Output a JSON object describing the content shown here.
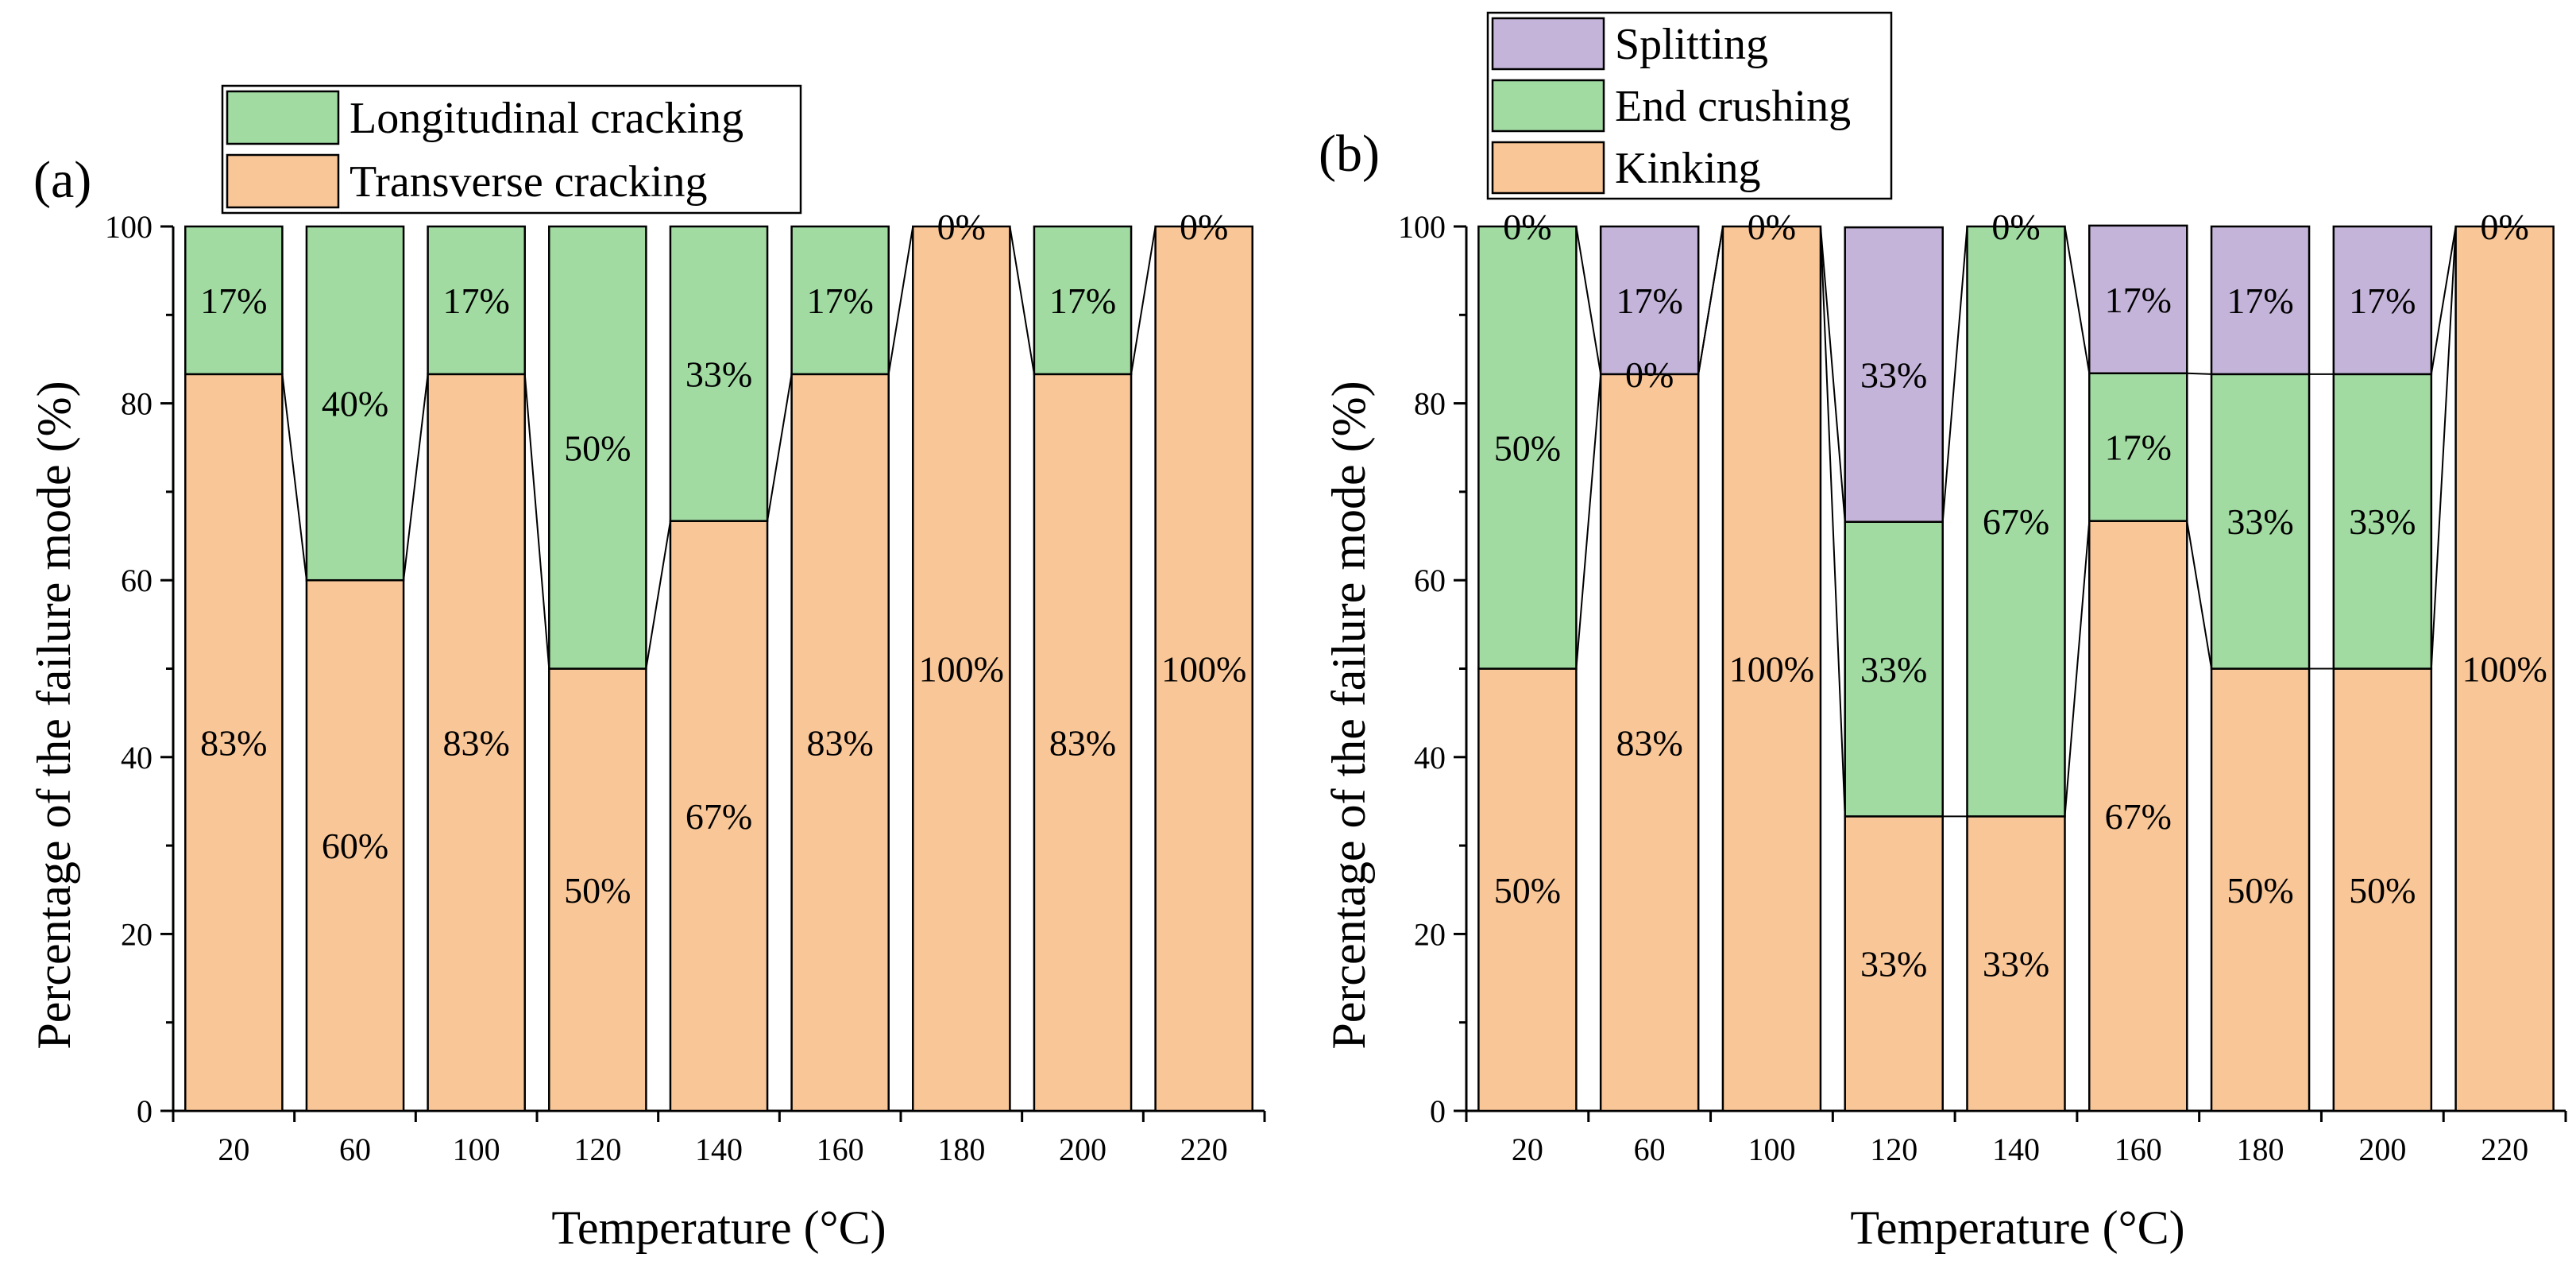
{
  "colors": {
    "orange": "#F9C697",
    "green": "#A1DBA2",
    "purple": "#C4B4D9",
    "stroke": "#000000"
  },
  "chart_data": [
    {
      "type": "bar",
      "stacked": true,
      "panel_label": "(a)",
      "title": "",
      "xlabel": "Temperature (°C)",
      "ylabel": "Percentage of the failure mode (%)",
      "ylim": [
        0,
        100
      ],
      "yticks": [
        "0",
        "20",
        "40",
        "60",
        "80",
        "100"
      ],
      "categories": [
        "20",
        "60",
        "100",
        "120",
        "140",
        "160",
        "180",
        "200",
        "220"
      ],
      "legend_position": "top",
      "series": [
        {
          "name": "Transverse cracking",
          "color_key": "orange",
          "values": [
            83.3,
            60,
            83.3,
            50,
            66.7,
            83.3,
            100,
            83.3,
            100
          ],
          "labels": [
            "83%",
            "60%",
            "83%",
            "50%",
            "67%",
            "83%",
            "100%",
            "83%",
            "100%"
          ]
        },
        {
          "name": "Longitudinal cracking",
          "color_key": "green",
          "values": [
            16.7,
            40,
            16.7,
            50,
            33.3,
            16.7,
            0,
            16.7,
            0
          ],
          "labels": [
            "17%",
            "40%",
            "17%",
            "50%",
            "33%",
            "17%",
            "0%",
            "17%",
            "0%"
          ]
        }
      ]
    },
    {
      "type": "bar",
      "stacked": true,
      "panel_label": "(b)",
      "title": "",
      "xlabel": "Temperature (°C)",
      "ylabel": "Percentage of the failure mode (%)",
      "ylim": [
        0,
        100
      ],
      "yticks": [
        "0",
        "20",
        "40",
        "60",
        "80",
        "100"
      ],
      "categories": [
        "20",
        "60",
        "100",
        "120",
        "140",
        "160",
        "180",
        "200",
        "220"
      ],
      "legend_position": "top",
      "series": [
        {
          "name": "Kinking",
          "color_key": "orange",
          "values": [
            50,
            83.3,
            100,
            33.3,
            33.3,
            66.7,
            50,
            50,
            100
          ],
          "labels": [
            "50%",
            "83%",
            "100%",
            "33%",
            "33%",
            "67%",
            "50%",
            "50%",
            "100%"
          ]
        },
        {
          "name": "End crushing",
          "color_key": "green",
          "values": [
            50,
            0,
            0,
            33.3,
            66.7,
            16.7,
            33.3,
            33.3,
            0
          ],
          "labels": [
            "50%",
            "0%",
            "",
            "33%",
            "67%",
            "17%",
            "33%",
            "33%",
            ""
          ]
        },
        {
          "name": "Splitting",
          "color_key": "purple",
          "values": [
            0,
            16.7,
            0,
            33.3,
            0,
            16.7,
            16.7,
            16.7,
            0
          ],
          "labels": [
            "0%",
            "17%",
            "0%",
            "33%",
            "0%",
            "17%",
            "17%",
            "17%",
            "0%"
          ]
        }
      ]
    }
  ]
}
